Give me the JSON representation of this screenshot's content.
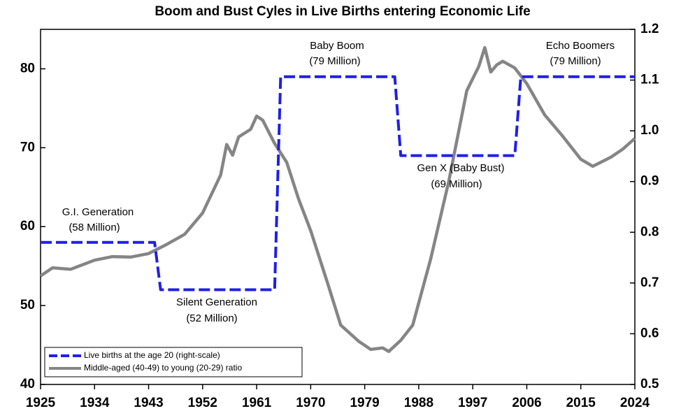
{
  "chart_data": {
    "type": "line",
    "title": "Boom and Bust Cyles in Live Births entering Economic Life",
    "xlim": [
      1925,
      2024
    ],
    "xticks": [
      1925,
      1934,
      1943,
      1952,
      1961,
      1970,
      1979,
      1988,
      1997,
      2006,
      2015,
      2024
    ],
    "ylim": [
      40,
      85
    ],
    "yticks": [
      40,
      50,
      60,
      70,
      80
    ],
    "y2lim": [
      0.5,
      1.2
    ],
    "y2ticks": [
      0.5,
      0.6,
      0.7,
      0.8,
      0.9,
      {
        "value": 1,
        "label": "1.0"
      },
      1.1,
      1.2
    ],
    "legend": "lower left",
    "series": [
      {
        "name": "Live births at the age 20 (right-scale)",
        "color": "#1f1fe8",
        "dashed": true,
        "x": [
          1925,
          1944,
          1945,
          1964,
          1965,
          1984,
          1985,
          2004,
          2005,
          2024
        ],
        "values": [
          58,
          58,
          52,
          52,
          79,
          79,
          69,
          69,
          79,
          79
        ]
      },
      {
        "name": "Middle-aged (40-49) to young (20-29) ratio",
        "color": "#858585",
        "axis": "y2",
        "x": [
          1925,
          1927,
          1930,
          1934,
          1937,
          1940,
          1943,
          1946,
          1949,
          1952,
          1955,
          1956,
          1957,
          1958,
          1960,
          1961,
          1962,
          1964,
          1966,
          1968,
          1970,
          1973,
          1975,
          1978,
          1980,
          1982,
          1983,
          1985,
          1987,
          1990,
          1993,
          1996,
          1998,
          1999,
          2000,
          2001,
          2002,
          2004,
          2006,
          2009,
          2012,
          2015,
          2017,
          2020,
          2022,
          2024
        ],
        "values": [
          0.714,
          0.73,
          0.727,
          0.745,
          0.752,
          0.751,
          0.758,
          0.776,
          0.796,
          0.838,
          0.913,
          0.973,
          0.952,
          0.988,
          1.003,
          1.029,
          1.021,
          0.975,
          0.938,
          0.865,
          0.803,
          0.693,
          0.617,
          0.585,
          0.569,
          0.572,
          0.565,
          0.587,
          0.617,
          0.748,
          0.9,
          1.079,
          1.127,
          1.164,
          1.116,
          1.13,
          1.137,
          1.124,
          1.093,
          1.031,
          0.989,
          0.944,
          0.93,
          0.948,
          0.964,
          0.985
        ]
      }
    ],
    "annotations": [
      "G.I. Generation",
      "(58 Million)",
      "Silent Generation",
      "(52 Million)",
      "Baby Boom",
      "(79 Million)",
      "Gen X (Baby Bust)",
      "(69 Million)",
      "Echo Boomers",
      "(79 Million)"
    ]
  }
}
